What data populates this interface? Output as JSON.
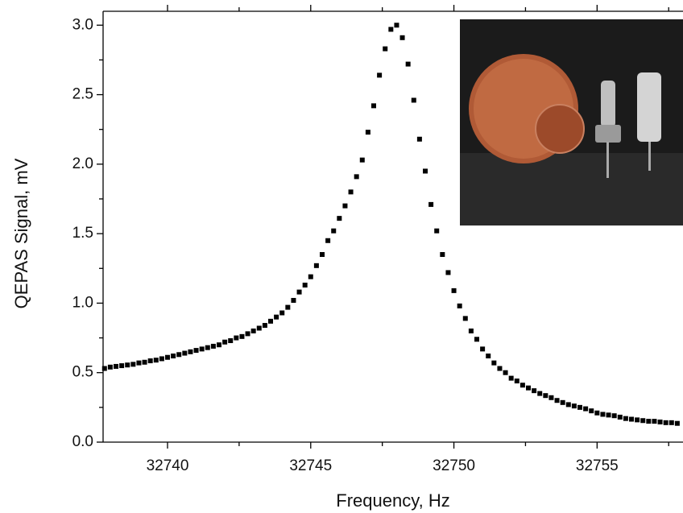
{
  "chart_data": {
    "type": "scatter",
    "xlabel": "Frequency, Hz",
    "ylabel": "QEPAS Signal, mV",
    "x": [
      32737.8,
      32738,
      32738.2,
      32738.4,
      32738.6,
      32738.8,
      32739,
      32739.2,
      32739.4,
      32739.6,
      32739.8,
      32740,
      32740.2,
      32740.4,
      32740.6,
      32740.8,
      32741,
      32741.2,
      32741.4,
      32741.6,
      32741.8,
      32742,
      32742.2,
      32742.4,
      32742.6,
      32742.8,
      32743,
      32743.2,
      32743.4,
      32743.6,
      32743.8,
      32744,
      32744.2,
      32744.4,
      32744.6,
      32744.8,
      32745,
      32745.2,
      32745.4,
      32745.6,
      32745.8,
      32746,
      32746.2,
      32746.4,
      32746.6,
      32746.8,
      32747,
      32747.2,
      32747.4,
      32747.6,
      32747.8,
      32748,
      32748.2,
      32748.4,
      32748.6,
      32748.8,
      32749,
      32749.2,
      32749.4,
      32749.6,
      32749.8,
      32750,
      32750.2,
      32750.4,
      32750.6,
      32750.8,
      32751,
      32751.2,
      32751.4,
      32751.6,
      32751.8,
      32752,
      32752.2,
      32752.4,
      32752.6,
      32752.8,
      32753,
      32753.2,
      32753.4,
      32753.6,
      32753.8,
      32754,
      32754.2,
      32754.4,
      32754.6,
      32754.8,
      32755,
      32755.2,
      32755.4,
      32755.6,
      32755.8,
      32756,
      32756.2,
      32756.4,
      32756.6,
      32756.8,
      32757,
      32757.2,
      32757.4,
      32757.6,
      32757.8
    ],
    "values": [
      0.53,
      0.54,
      0.545,
      0.55,
      0.555,
      0.56,
      0.57,
      0.575,
      0.585,
      0.59,
      0.6,
      0.61,
      0.62,
      0.63,
      0.64,
      0.65,
      0.66,
      0.67,
      0.68,
      0.69,
      0.7,
      0.72,
      0.73,
      0.75,
      0.76,
      0.78,
      0.8,
      0.82,
      0.84,
      0.87,
      0.9,
      0.93,
      0.97,
      1.02,
      1.08,
      1.13,
      1.19,
      1.27,
      1.35,
      1.45,
      1.52,
      1.61,
      1.7,
      1.8,
      1.91,
      2.03,
      2.23,
      2.42,
      2.64,
      2.83,
      2.97,
      3.0,
      2.91,
      2.72,
      2.46,
      2.18,
      1.95,
      1.71,
      1.52,
      1.35,
      1.22,
      1.09,
      0.98,
      0.89,
      0.8,
      0.74,
      0.67,
      0.62,
      0.57,
      0.53,
      0.5,
      0.46,
      0.44,
      0.41,
      0.39,
      0.37,
      0.35,
      0.335,
      0.32,
      0.3,
      0.285,
      0.27,
      0.26,
      0.25,
      0.24,
      0.225,
      0.21,
      0.2,
      0.195,
      0.19,
      0.18,
      0.17,
      0.165,
      0.16,
      0.155,
      0.15,
      0.15,
      0.145,
      0.14,
      0.14,
      0.135
    ],
    "color": "#000000",
    "xlim": [
      32737.75,
      32758
    ],
    "ylim": [
      0,
      3.1
    ],
    "xticks": [
      32740,
      32745,
      32750,
      32755
    ],
    "xminorticks": [
      32737.5,
      32742.5,
      32747.5,
      32752.5,
      32757.5
    ],
    "yticks": [
      {
        "value": 0,
        "label": "0.0"
      },
      0.5,
      {
        "value": 1,
        "label": "1.0"
      },
      1.5,
      {
        "value": 2,
        "label": "2.0"
      },
      2.5,
      {
        "value": 3,
        "label": "3.0"
      }
    ],
    "yminorticks": [
      0.25,
      0.75,
      1.25,
      1.75,
      2.25,
      2.75
    ]
  }
}
